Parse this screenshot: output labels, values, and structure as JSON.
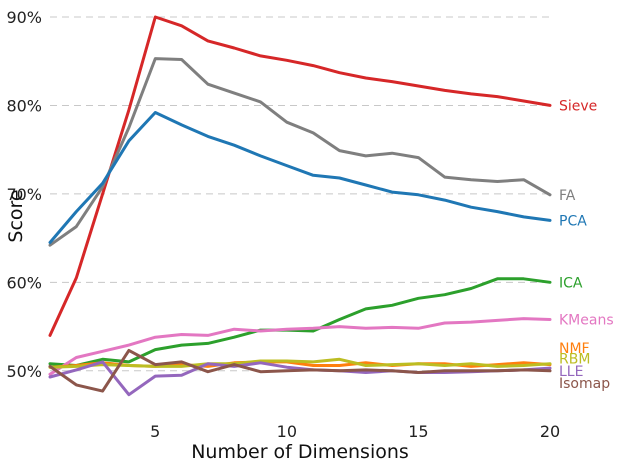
{
  "chart_data": {
    "type": "line",
    "title": "",
    "xlabel": "Number of Dimensions",
    "ylabel": "Score",
    "xlim": [
      1,
      20
    ],
    "ylim": [
      45,
      90
    ],
    "xticks": [
      5,
      10,
      15,
      20
    ],
    "yticks": [
      50,
      60,
      70,
      80,
      90
    ],
    "ytick_labels": [
      "50%",
      "60%",
      "70%",
      "80%",
      "90%"
    ],
    "grid": "horizontal dashed",
    "x": [
      1,
      2,
      3,
      4,
      5,
      6,
      7,
      8,
      9,
      10,
      11,
      12,
      13,
      14,
      15,
      16,
      17,
      18,
      19,
      20
    ],
    "series": [
      {
        "name": "Sieve",
        "color": "#d62728",
        "values": [
          54.0,
          60.5,
          70.0,
          79.5,
          90.0,
          89.0,
          87.3,
          86.5,
          85.6,
          85.1,
          84.5,
          83.7,
          83.1,
          82.7,
          82.2,
          81.7,
          81.3,
          81.0,
          80.5,
          80.0
        ]
      },
      {
        "name": "FA",
        "color": "#7f7f7f",
        "values": [
          64.2,
          66.3,
          70.8,
          77.5,
          85.3,
          85.2,
          82.4,
          81.4,
          80.4,
          78.1,
          76.9,
          74.9,
          74.3,
          74.6,
          74.1,
          71.9,
          71.6,
          71.4,
          71.6,
          69.9
        ]
      },
      {
        "name": "PCA",
        "color": "#1f77b4",
        "values": [
          64.5,
          68.0,
          71.2,
          76.0,
          79.2,
          77.8,
          76.5,
          75.5,
          74.3,
          73.2,
          72.1,
          71.8,
          71.0,
          70.2,
          69.9,
          69.3,
          68.5,
          68.0,
          67.4,
          67.0
        ]
      },
      {
        "name": "ICA",
        "color": "#2ca02c",
        "values": [
          50.8,
          50.6,
          51.3,
          51.0,
          52.4,
          52.9,
          53.1,
          53.8,
          54.6,
          54.6,
          54.5,
          55.8,
          57.0,
          57.4,
          58.2,
          58.6,
          59.3,
          60.4,
          60.4,
          60.0
        ]
      },
      {
        "name": "KMeans",
        "color": "#e377c2",
        "values": [
          49.6,
          51.5,
          52.2,
          52.9,
          53.8,
          54.1,
          54.0,
          54.7,
          54.5,
          54.7,
          54.8,
          55.0,
          54.8,
          54.9,
          54.8,
          55.4,
          55.5,
          55.7,
          55.9,
          55.8
        ]
      },
      {
        "name": "NMF",
        "color": "#ff7f0e",
        "values": [
          50.4,
          50.6,
          50.9,
          50.6,
          50.5,
          50.7,
          50.5,
          50.9,
          51.0,
          51.0,
          50.6,
          50.6,
          50.9,
          50.6,
          50.8,
          50.8,
          50.5,
          50.7,
          50.9,
          50.7
        ]
      },
      {
        "name": "RBM",
        "color": "#bcbd22",
        "values": [
          50.4,
          50.5,
          50.7,
          50.6,
          50.5,
          50.5,
          50.8,
          50.8,
          51.1,
          51.1,
          51.0,
          51.3,
          50.6,
          50.7,
          50.8,
          50.6,
          50.8,
          50.5,
          50.6,
          50.8
        ]
      },
      {
        "name": "LLE",
        "color": "#9467bd",
        "values": [
          49.3,
          50.1,
          51.0,
          47.3,
          49.4,
          49.5,
          50.8,
          50.5,
          50.9,
          50.4,
          50.1,
          50.0,
          49.8,
          50.0,
          49.8,
          49.8,
          49.9,
          50.0,
          50.1,
          50.3
        ]
      },
      {
        "name": "Isomap",
        "color": "#8c564b",
        "values": [
          50.5,
          48.4,
          47.7,
          52.3,
          50.7,
          51.0,
          49.9,
          50.7,
          49.9,
          50.0,
          50.1,
          50.0,
          50.1,
          50.0,
          49.8,
          50.0,
          50.0,
          50.0,
          50.1,
          50.0
        ]
      }
    ],
    "end_labels": [
      {
        "name": "Sieve",
        "color": "#d62728",
        "label_y": 80.0
      },
      {
        "name": "FA",
        "color": "#7f7f7f",
        "label_y": 69.9
      },
      {
        "name": "PCA",
        "color": "#1f77b4",
        "label_y": 67.0
      },
      {
        "name": "ICA",
        "color": "#2ca02c",
        "label_y": 60.0
      },
      {
        "name": "KMeans",
        "color": "#e377c2",
        "label_y": 55.8
      },
      {
        "name": "NMF",
        "color": "#ff7f0e",
        "label_y": 52.6
      },
      {
        "name": "RBM",
        "color": "#bcbd22",
        "label_y": 51.4
      },
      {
        "name": "LLE",
        "color": "#9467bd",
        "label_y": 50.0
      },
      {
        "name": "Isomap",
        "color": "#8c564b",
        "label_y": 48.6
      }
    ]
  }
}
